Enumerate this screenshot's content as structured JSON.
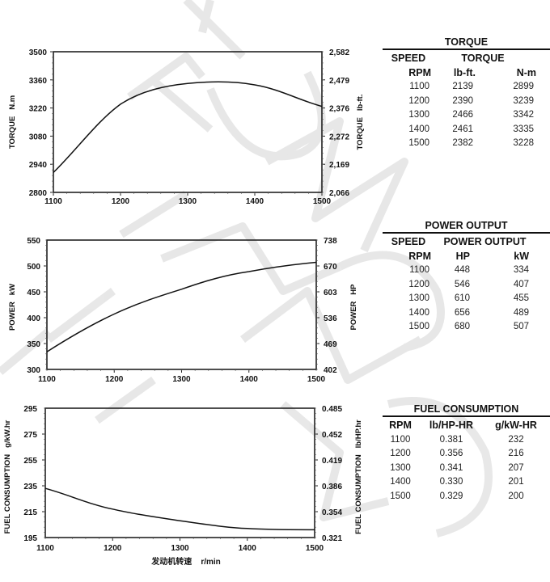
{
  "charts": {
    "torque": {
      "y_left_title": "TORQUE   N.m",
      "y_right_title": "TORQUE   lb-ft.",
      "y_left_ticks": [
        "3500",
        "3360",
        "3220",
        "3080",
        "2940",
        "2800"
      ],
      "y_right_ticks": [
        "2,582",
        "2,479",
        "2,376",
        "2,272",
        "2,169",
        "2,066"
      ],
      "x_ticks": [
        "1100",
        "1200",
        "1300",
        "1400",
        "1500"
      ]
    },
    "power": {
      "y_left_title": "POWER   kW",
      "y_right_title": "POWER   HP",
      "y_left_ticks": [
        "550",
        "500",
        "450",
        "400",
        "350",
        "300"
      ],
      "y_right_ticks": [
        "738",
        "670",
        "603",
        "536",
        "469",
        "402"
      ],
      "x_ticks": [
        "1100",
        "1200",
        "1300",
        "1400",
        "1500"
      ]
    },
    "fuel": {
      "y_left_title": "FUEL CONSUMPTION   g/kW.hr",
      "y_right_title": "FUEL CONSUMPTION   lb/HP.hr",
      "y_left_ticks": [
        "295",
        "275",
        "255",
        "235",
        "215",
        "195"
      ],
      "y_right_ticks": [
        "0.485",
        "0.452",
        "0.419",
        "0.386",
        "0.354",
        "0.321"
      ],
      "x_ticks": [
        "1100",
        "1200",
        "1300",
        "1400",
        "1500"
      ],
      "x_title": "发动机转速    r/min"
    }
  },
  "tables": {
    "torque": {
      "title": "TORQUE",
      "header1": [
        "SPEED",
        "TORQUE"
      ],
      "header2": [
        "RPM",
        "lb-ft.",
        "N-m"
      ],
      "rows": [
        [
          "1100",
          "2139",
          "2899"
        ],
        [
          "1200",
          "2390",
          "3239"
        ],
        [
          "1300",
          "2466",
          "3342"
        ],
        [
          "1400",
          "2461",
          "3335"
        ],
        [
          "1500",
          "2382",
          "3228"
        ]
      ]
    },
    "power": {
      "title": "POWER OUTPUT",
      "header1": [
        "SPEED",
        "POWER OUTPUT"
      ],
      "header2": [
        "RPM",
        "HP",
        "kW"
      ],
      "rows": [
        [
          "1100",
          "448",
          "334"
        ],
        [
          "1200",
          "546",
          "407"
        ],
        [
          "1300",
          "610",
          "455"
        ],
        [
          "1400",
          "656",
          "489"
        ],
        [
          "1500",
          "680",
          "507"
        ]
      ]
    },
    "fuel": {
      "title": "FUEL CONSUMPTION",
      "header2": [
        "RPM",
        "lb/HP-HR",
        "g/kW-HR"
      ],
      "rows": [
        [
          "1100",
          "0.381",
          "232"
        ],
        [
          "1200",
          "0.356",
          "216"
        ],
        [
          "1300",
          "0.341",
          "207"
        ],
        [
          "1400",
          "0.330",
          "201"
        ],
        [
          "1500",
          "0.329",
          "200"
        ]
      ]
    }
  },
  "chart_data": [
    {
      "type": "line",
      "title": "Torque",
      "xlabel": "",
      "ylabel": "TORQUE N.m",
      "ylabel_right": "TORQUE lb-ft.",
      "x": [
        1100,
        1200,
        1300,
        1400,
        1500
      ],
      "series": [
        {
          "name": "Torque (N·m)",
          "values": [
            2899,
            3239,
            3342,
            3335,
            3228
          ]
        },
        {
          "name": "Torque (lb-ft)",
          "values": [
            2139,
            2390,
            2466,
            2461,
            2382
          ]
        }
      ],
      "xlim": [
        1100,
        1500
      ],
      "ylim": [
        2800,
        3500
      ],
      "ylim_right": [
        2066,
        2582
      ],
      "grid": false,
      "legend": "none"
    },
    {
      "type": "line",
      "title": "Power Output",
      "xlabel": "",
      "ylabel": "POWER kW",
      "ylabel_right": "POWER HP",
      "x": [
        1100,
        1200,
        1300,
        1400,
        1500
      ],
      "series": [
        {
          "name": "Power (kW)",
          "values": [
            334,
            407,
            455,
            489,
            507
          ]
        },
        {
          "name": "Power (HP)",
          "values": [
            448,
            546,
            610,
            656,
            680
          ]
        }
      ],
      "xlim": [
        1100,
        1500
      ],
      "ylim": [
        300,
        550
      ],
      "ylim_right": [
        402,
        738
      ],
      "grid": false,
      "legend": "none"
    },
    {
      "type": "line",
      "title": "Fuel Consumption",
      "xlabel": "发动机转速 r/min",
      "ylabel": "FUEL CONSUMPTION g/kW.hr",
      "ylabel_right": "FUEL CONSUMPTION lb/HP.hr",
      "x": [
        1100,
        1200,
        1300,
        1400,
        1500
      ],
      "series": [
        {
          "name": "Fuel (g/kW-hr)",
          "values": [
            232,
            216,
            207,
            201,
            200
          ]
        },
        {
          "name": "Fuel (lb/HP-hr)",
          "values": [
            0.381,
            0.356,
            0.341,
            0.33,
            0.329
          ]
        }
      ],
      "xlim": [
        1100,
        1500
      ],
      "ylim": [
        195,
        295
      ],
      "ylim_right": [
        0.321,
        0.485
      ],
      "grid": false,
      "legend": "none"
    }
  ]
}
